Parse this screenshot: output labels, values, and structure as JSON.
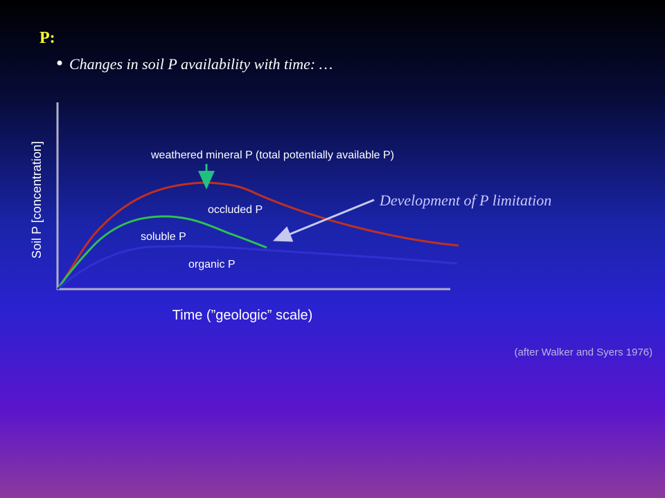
{
  "slide": {
    "title": "P:",
    "bullet": "Changes in soil P availability with time: …",
    "chart": {
      "y_label": "Soil  P [concentration]",
      "x_label": "Time (”geologic” scale)",
      "curve_labels": {
        "weathered": "weathered mineral P (total potentially available P)",
        "occluded": "occluded P",
        "soluble": "soluble P",
        "organic": "organic P"
      },
      "annotation": "Development of P limitation"
    },
    "citation": "(after Walker and Syers 1976)"
  }
}
